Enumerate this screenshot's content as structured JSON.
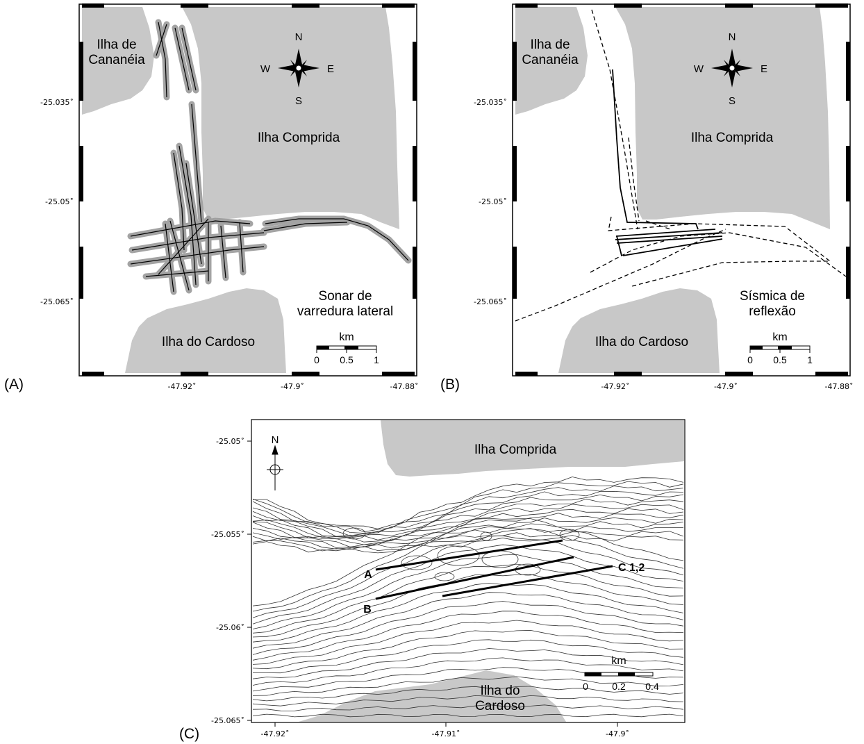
{
  "figure": {
    "panels": [
      {
        "tag": "(A)",
        "places": {
          "cananeia_line1": "Ilha de",
          "cananeia_line2": "Cananéia",
          "comprida": "Ilha Comprida",
          "cardoso": "Ilha do Cardoso"
        },
        "compass": {
          "n": "N",
          "s": "S",
          "e": "E",
          "w": "W"
        },
        "caption_line1": "Sonar de",
        "caption_line2": "varredura lateral",
        "scale": {
          "unit": "km",
          "labels": [
            "0",
            "0.5",
            "1"
          ]
        },
        "y_ticks": [
          "-25.035˚",
          "-25.05˚",
          "-25.065˚"
        ],
        "x_ticks": [
          "-47.92˚",
          "-47.9˚",
          "-47.88˚"
        ]
      },
      {
        "tag": "(B)",
        "places": {
          "cananeia_line1": "Ilha de",
          "cananeia_line2": "Cananéia",
          "comprida": "Ilha Comprida",
          "cardoso": "Ilha do Cardoso"
        },
        "compass": {
          "n": "N",
          "s": "S",
          "e": "E",
          "w": "W"
        },
        "caption_line1": "Sísmica de",
        "caption_line2": "reflexão",
        "scale": {
          "unit": "km",
          "labels": [
            "0",
            "0.5",
            "1"
          ]
        },
        "y_ticks": [
          "-25.035˚",
          "-25.05˚",
          "-25.065˚"
        ],
        "x_ticks": [
          "-47.92˚",
          "-47.9˚",
          "-47.88˚"
        ]
      },
      {
        "tag": "(C)",
        "places": {
          "comprida": "Ilha Comprida",
          "cardoso_line1": "Ilha do",
          "cardoso_line2": "Cardoso"
        },
        "north": "N",
        "profile_labels": {
          "a": "A",
          "b": "B",
          "c": "C 1,2"
        },
        "scale": {
          "unit": "km",
          "labels": [
            "0",
            "0.2",
            "0.4"
          ]
        },
        "y_ticks": [
          "-25.05˚",
          "-25.055˚",
          "-25.06˚",
          "-25.065˚"
        ],
        "x_ticks": [
          "-47.92˚",
          "-47.91˚",
          "-47.9˚"
        ]
      }
    ],
    "colors": {
      "land": "#c8c8c8",
      "line": "#000000",
      "halo": "#9a9a9a"
    }
  }
}
